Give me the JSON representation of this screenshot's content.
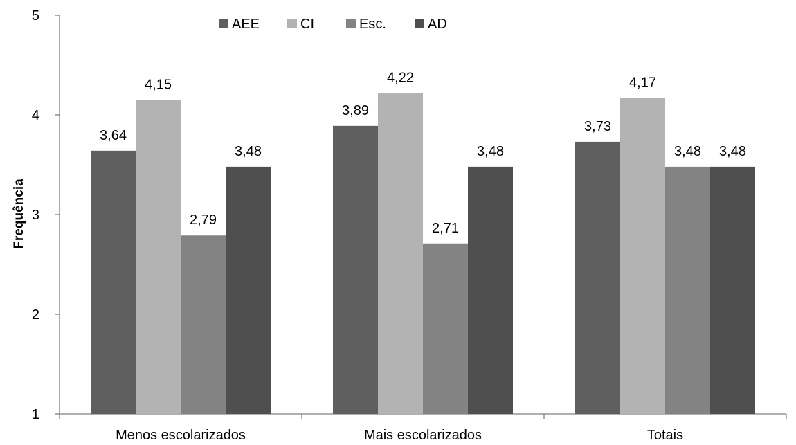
{
  "chart_data": {
    "type": "bar",
    "categories": [
      "Menos escolarizados",
      "Mais escolarizados",
      "Totais"
    ],
    "series": [
      {
        "name": "AEE",
        "values": [
          3.64,
          3.89,
          3.73
        ],
        "color": "#5f5f5f"
      },
      {
        "name": "CI",
        "values": [
          4.15,
          4.22,
          4.17
        ],
        "color": "#b3b3b3"
      },
      {
        "name": "Esc.",
        "values": [
          2.79,
          2.71,
          3.48
        ],
        "color": "#838383"
      },
      {
        "name": "AD",
        "values": [
          3.48,
          3.48,
          3.48
        ],
        "color": "#4f4f4f"
      }
    ],
    "data_labels": [
      [
        "3,64",
        "3,89",
        "3,73"
      ],
      [
        "4,15",
        "4,22",
        "4,17"
      ],
      [
        "2,79",
        "2,71",
        "3,48"
      ],
      [
        "3,48",
        "3,48",
        "3,48"
      ]
    ],
    "title": "",
    "xlabel": "",
    "ylabel": "Frequência",
    "ylim": [
      1,
      5
    ],
    "yticks": [
      1,
      2,
      3,
      4,
      5
    ],
    "ytick_labels": [
      "1",
      "2",
      "3",
      "4",
      "5"
    ],
    "grid": false,
    "legend_position": "top"
  }
}
